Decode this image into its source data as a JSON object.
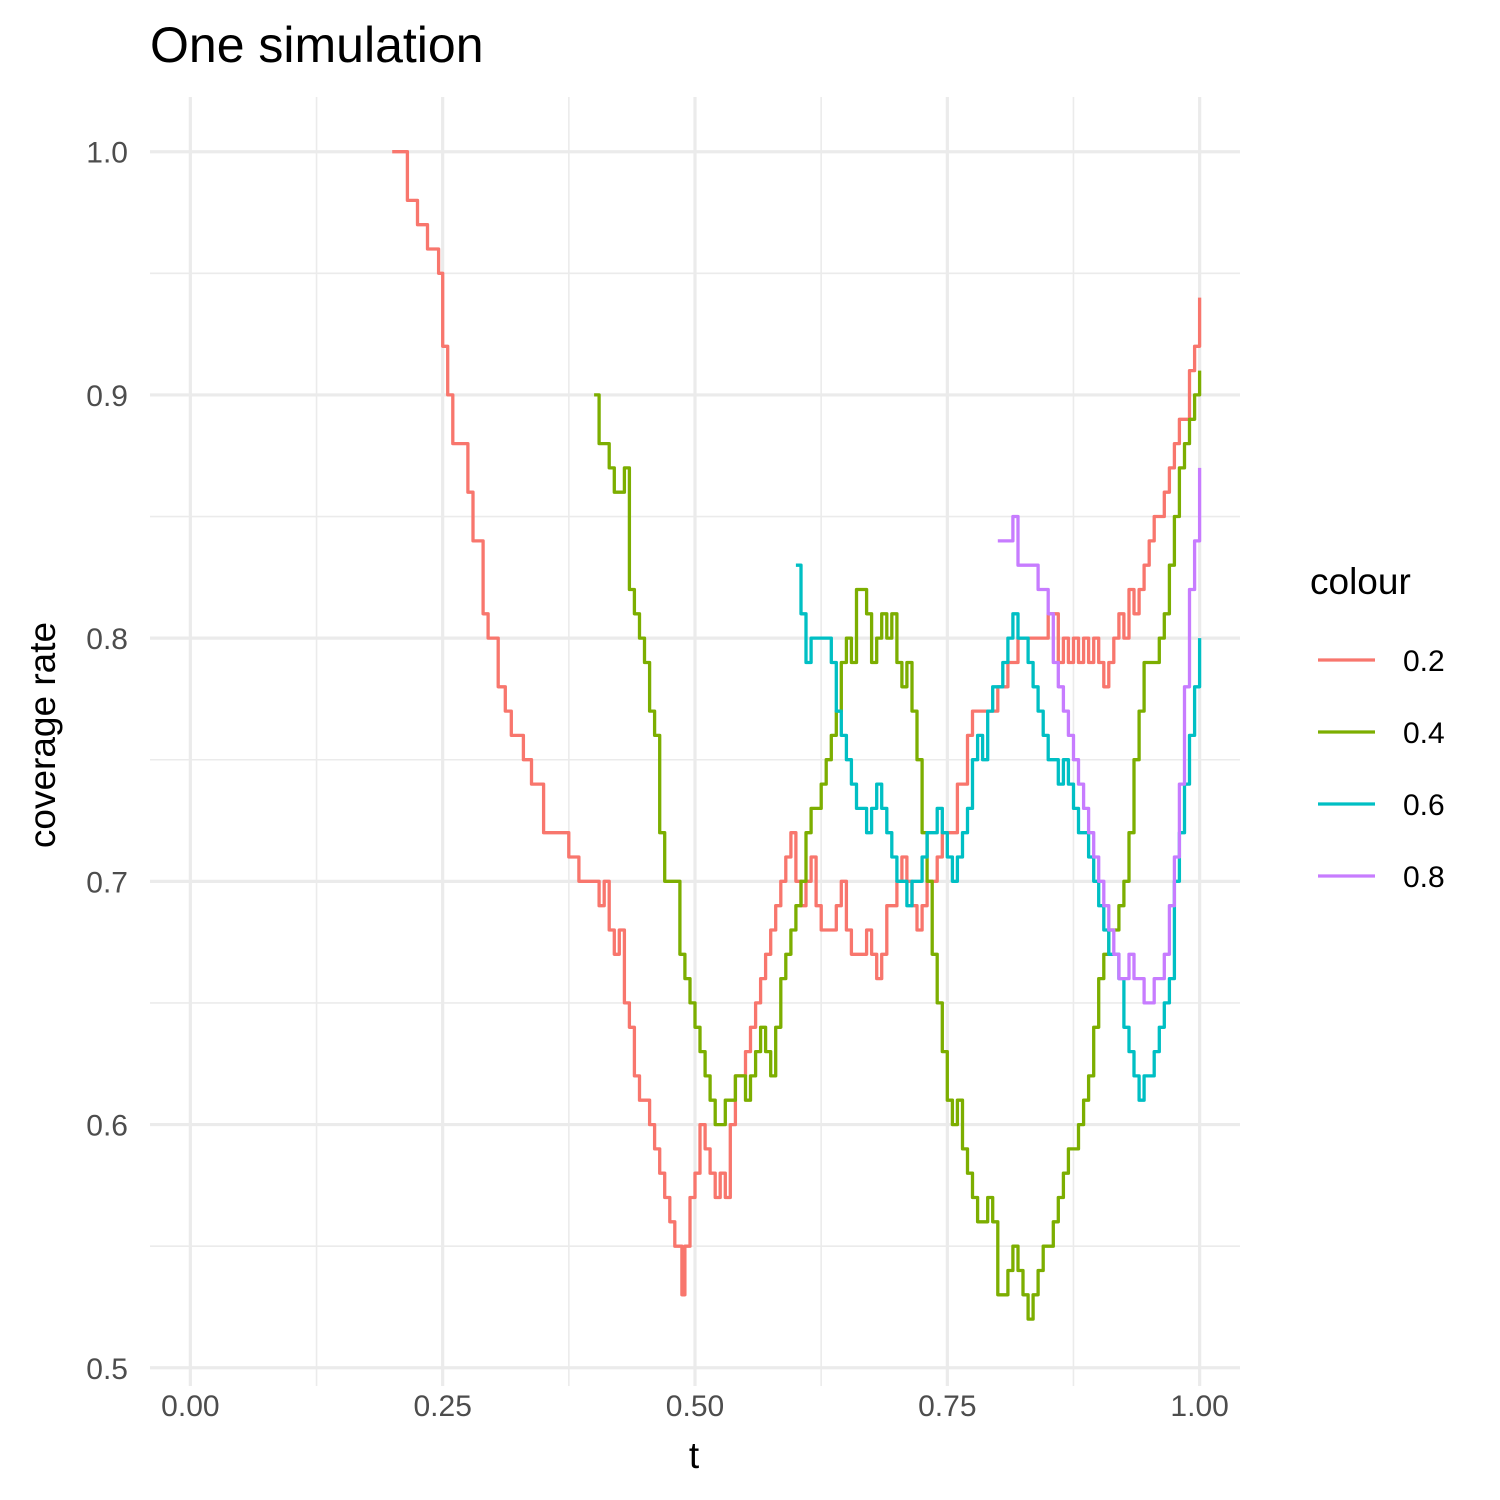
{
  "chart_data": {
    "type": "line",
    "title": "One simulation",
    "xlabel": "t",
    "ylabel": "coverage rate",
    "xlim": [
      -0.04,
      1.04
    ],
    "ylim": [
      0.4925,
      1.0225
    ],
    "x_ticks": [
      0.0,
      0.25,
      0.5,
      0.75,
      1.0
    ],
    "x_tick_labels": [
      "0.00",
      "0.25",
      "0.50",
      "0.75",
      "1.00"
    ],
    "y_ticks": [
      0.5,
      0.6,
      0.7,
      0.8,
      0.9,
      1.0
    ],
    "y_tick_labels": [
      "0.5",
      "0.6",
      "0.7",
      "0.8",
      "0.9",
      "1.0"
    ],
    "grid": true,
    "legend": {
      "title": "colour",
      "position": "right"
    },
    "series": [
      {
        "name": "0.2",
        "color": "#F8766D",
        "x": [
          0.2,
          0.212,
          0.215,
          0.225,
          0.235,
          0.242,
          0.246,
          0.25,
          0.255,
          0.26,
          0.27,
          0.275,
          0.28,
          0.29,
          0.295,
          0.305,
          0.312,
          0.318,
          0.33,
          0.338,
          0.35,
          0.355,
          0.375,
          0.385,
          0.4,
          0.405,
          0.41,
          0.415,
          0.42,
          0.425,
          0.43,
          0.435,
          0.44,
          0.445,
          0.455,
          0.46,
          0.465,
          0.47,
          0.475,
          0.48,
          0.487,
          0.49,
          0.495,
          0.5,
          0.505,
          0.51,
          0.515,
          0.52,
          0.525,
          0.53,
          0.535,
          0.54,
          0.545,
          0.55,
          0.555,
          0.56,
          0.565,
          0.57,
          0.575,
          0.58,
          0.585,
          0.59,
          0.595,
          0.6,
          0.605,
          0.61,
          0.615,
          0.62,
          0.625,
          0.63,
          0.64,
          0.645,
          0.65,
          0.655,
          0.66,
          0.67,
          0.675,
          0.68,
          0.685,
          0.69,
          0.7,
          0.705,
          0.71,
          0.715,
          0.72,
          0.725,
          0.73,
          0.74,
          0.745,
          0.75,
          0.76,
          0.77,
          0.775,
          0.78,
          0.79,
          0.8,
          0.81,
          0.82,
          0.83,
          0.84,
          0.845,
          0.85,
          0.86,
          0.865,
          0.87,
          0.875,
          0.88,
          0.885,
          0.89,
          0.895,
          0.9,
          0.905,
          0.91,
          0.915,
          0.92,
          0.925,
          0.93,
          0.935,
          0.94,
          0.945,
          0.95,
          0.955,
          0.96,
          0.965,
          0.97,
          0.975,
          0.98,
          0.985,
          0.99,
          0.995,
          1.0
        ],
        "values": [
          1.0,
          1.0,
          0.98,
          0.97,
          0.96,
          0.96,
          0.95,
          0.92,
          0.9,
          0.88,
          0.88,
          0.86,
          0.84,
          0.81,
          0.8,
          0.78,
          0.77,
          0.76,
          0.75,
          0.74,
          0.72,
          0.72,
          0.71,
          0.7,
          0.7,
          0.69,
          0.7,
          0.68,
          0.67,
          0.68,
          0.65,
          0.64,
          0.62,
          0.61,
          0.6,
          0.59,
          0.58,
          0.57,
          0.56,
          0.55,
          0.53,
          0.55,
          0.57,
          0.58,
          0.6,
          0.59,
          0.58,
          0.57,
          0.58,
          0.57,
          0.6,
          0.62,
          0.62,
          0.63,
          0.64,
          0.65,
          0.66,
          0.67,
          0.68,
          0.69,
          0.7,
          0.71,
          0.72,
          0.7,
          0.69,
          0.7,
          0.71,
          0.69,
          0.68,
          0.68,
          0.69,
          0.7,
          0.68,
          0.67,
          0.67,
          0.68,
          0.67,
          0.66,
          0.67,
          0.69,
          0.7,
          0.71,
          0.7,
          0.69,
          0.68,
          0.69,
          0.7,
          0.71,
          0.72,
          0.72,
          0.74,
          0.76,
          0.77,
          0.77,
          0.77,
          0.78,
          0.79,
          0.8,
          0.8,
          0.8,
          0.8,
          0.81,
          0.79,
          0.8,
          0.79,
          0.8,
          0.79,
          0.8,
          0.79,
          0.8,
          0.79,
          0.78,
          0.79,
          0.8,
          0.81,
          0.8,
          0.82,
          0.81,
          0.82,
          0.83,
          0.84,
          0.85,
          0.85,
          0.86,
          0.87,
          0.88,
          0.89,
          0.89,
          0.91,
          0.92,
          0.94
        ]
      },
      {
        "name": "0.4",
        "color": "#7CAE00",
        "x": [
          0.4,
          0.405,
          0.41,
          0.415,
          0.42,
          0.425,
          0.43,
          0.435,
          0.44,
          0.445,
          0.45,
          0.455,
          0.46,
          0.465,
          0.47,
          0.475,
          0.48,
          0.485,
          0.49,
          0.495,
          0.5,
          0.505,
          0.51,
          0.515,
          0.52,
          0.525,
          0.53,
          0.535,
          0.54,
          0.545,
          0.55,
          0.555,
          0.56,
          0.565,
          0.57,
          0.575,
          0.58,
          0.585,
          0.59,
          0.595,
          0.6,
          0.605,
          0.61,
          0.615,
          0.62,
          0.625,
          0.63,
          0.635,
          0.64,
          0.645,
          0.65,
          0.655,
          0.66,
          0.665,
          0.67,
          0.675,
          0.68,
          0.685,
          0.69,
          0.695,
          0.7,
          0.705,
          0.71,
          0.715,
          0.72,
          0.725,
          0.73,
          0.735,
          0.74,
          0.745,
          0.75,
          0.755,
          0.76,
          0.765,
          0.77,
          0.775,
          0.78,
          0.785,
          0.79,
          0.795,
          0.8,
          0.805,
          0.81,
          0.815,
          0.82,
          0.825,
          0.83,
          0.835,
          0.84,
          0.845,
          0.85,
          0.855,
          0.86,
          0.865,
          0.87,
          0.875,
          0.88,
          0.885,
          0.89,
          0.895,
          0.9,
          0.905,
          0.91,
          0.915,
          0.92,
          0.925,
          0.93,
          0.935,
          0.94,
          0.945,
          0.95,
          0.955,
          0.96,
          0.965,
          0.97,
          0.975,
          0.98,
          0.985,
          0.99,
          0.995,
          1.0
        ],
        "values": [
          0.9,
          0.88,
          0.88,
          0.87,
          0.86,
          0.86,
          0.87,
          0.82,
          0.81,
          0.8,
          0.79,
          0.77,
          0.76,
          0.72,
          0.7,
          0.7,
          0.7,
          0.67,
          0.66,
          0.65,
          0.64,
          0.63,
          0.62,
          0.61,
          0.6,
          0.6,
          0.61,
          0.61,
          0.62,
          0.62,
          0.61,
          0.62,
          0.63,
          0.64,
          0.63,
          0.62,
          0.64,
          0.66,
          0.67,
          0.68,
          0.69,
          0.7,
          0.72,
          0.73,
          0.73,
          0.74,
          0.75,
          0.76,
          0.77,
          0.79,
          0.8,
          0.79,
          0.82,
          0.82,
          0.81,
          0.79,
          0.8,
          0.81,
          0.8,
          0.81,
          0.79,
          0.78,
          0.79,
          0.77,
          0.75,
          0.72,
          0.7,
          0.67,
          0.65,
          0.63,
          0.61,
          0.6,
          0.61,
          0.59,
          0.58,
          0.57,
          0.56,
          0.56,
          0.57,
          0.56,
          0.53,
          0.53,
          0.54,
          0.55,
          0.54,
          0.53,
          0.52,
          0.53,
          0.54,
          0.55,
          0.55,
          0.56,
          0.57,
          0.58,
          0.59,
          0.59,
          0.6,
          0.61,
          0.62,
          0.64,
          0.66,
          0.67,
          0.68,
          0.68,
          0.69,
          0.7,
          0.72,
          0.75,
          0.77,
          0.79,
          0.79,
          0.79,
          0.8,
          0.81,
          0.83,
          0.85,
          0.87,
          0.88,
          0.89,
          0.9,
          0.91
        ]
      },
      {
        "name": "0.6",
        "color": "#00BFC4",
        "x": [
          0.6,
          0.605,
          0.61,
          0.615,
          0.62,
          0.625,
          0.63,
          0.635,
          0.64,
          0.645,
          0.65,
          0.655,
          0.66,
          0.665,
          0.67,
          0.675,
          0.68,
          0.685,
          0.69,
          0.695,
          0.7,
          0.705,
          0.71,
          0.715,
          0.72,
          0.725,
          0.73,
          0.735,
          0.74,
          0.745,
          0.75,
          0.755,
          0.76,
          0.765,
          0.77,
          0.775,
          0.78,
          0.785,
          0.79,
          0.795,
          0.8,
          0.805,
          0.81,
          0.815,
          0.82,
          0.825,
          0.83,
          0.835,
          0.84,
          0.845,
          0.85,
          0.855,
          0.86,
          0.865,
          0.87,
          0.875,
          0.88,
          0.885,
          0.89,
          0.895,
          0.9,
          0.905,
          0.91,
          0.915,
          0.92,
          0.925,
          0.93,
          0.935,
          0.94,
          0.945,
          0.95,
          0.955,
          0.96,
          0.965,
          0.97,
          0.975,
          0.98,
          0.985,
          0.99,
          0.995,
          1.0
        ],
        "values": [
          0.83,
          0.81,
          0.79,
          0.8,
          0.8,
          0.8,
          0.8,
          0.79,
          0.77,
          0.76,
          0.75,
          0.74,
          0.73,
          0.73,
          0.72,
          0.73,
          0.74,
          0.73,
          0.72,
          0.71,
          0.7,
          0.7,
          0.69,
          0.7,
          0.7,
          0.71,
          0.72,
          0.72,
          0.73,
          0.72,
          0.71,
          0.7,
          0.71,
          0.72,
          0.73,
          0.75,
          0.76,
          0.75,
          0.77,
          0.78,
          0.78,
          0.79,
          0.8,
          0.81,
          0.8,
          0.8,
          0.79,
          0.78,
          0.77,
          0.76,
          0.75,
          0.75,
          0.74,
          0.75,
          0.74,
          0.73,
          0.72,
          0.72,
          0.71,
          0.7,
          0.69,
          0.68,
          0.67,
          0.67,
          0.66,
          0.64,
          0.63,
          0.62,
          0.61,
          0.62,
          0.62,
          0.63,
          0.64,
          0.65,
          0.66,
          0.7,
          0.72,
          0.74,
          0.76,
          0.78,
          0.8
        ]
      },
      {
        "name": "0.8",
        "color": "#C77CFF",
        "x": [
          0.8,
          0.81,
          0.815,
          0.82,
          0.83,
          0.84,
          0.845,
          0.85,
          0.855,
          0.86,
          0.865,
          0.87,
          0.875,
          0.88,
          0.885,
          0.89,
          0.895,
          0.9,
          0.905,
          0.91,
          0.915,
          0.92,
          0.925,
          0.93,
          0.935,
          0.94,
          0.945,
          0.95,
          0.955,
          0.96,
          0.965,
          0.97,
          0.975,
          0.98,
          0.985,
          0.99,
          0.995,
          1.0
        ],
        "values": [
          0.84,
          0.84,
          0.85,
          0.83,
          0.83,
          0.82,
          0.82,
          0.81,
          0.79,
          0.78,
          0.77,
          0.76,
          0.75,
          0.74,
          0.73,
          0.72,
          0.71,
          0.7,
          0.69,
          0.68,
          0.67,
          0.66,
          0.66,
          0.67,
          0.66,
          0.66,
          0.65,
          0.65,
          0.66,
          0.66,
          0.67,
          0.69,
          0.71,
          0.74,
          0.78,
          0.82,
          0.84,
          0.87
        ]
      }
    ]
  }
}
